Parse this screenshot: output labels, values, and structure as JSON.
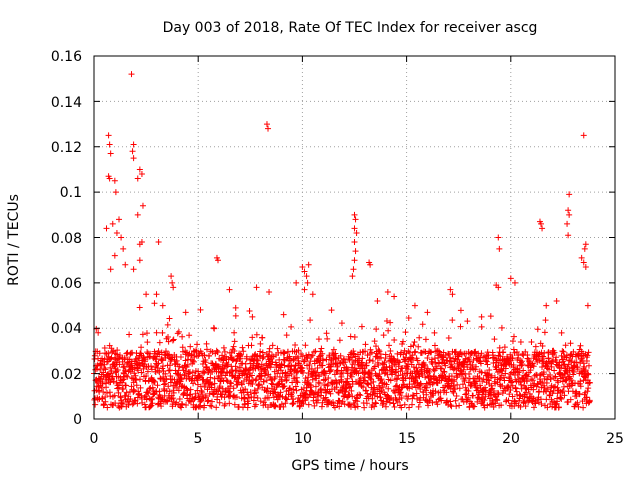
{
  "chart_data": {
    "type": "scatter",
    "title": "Day 003 of 2018, Rate Of TEC Index for receiver ascg",
    "xlabel": "GPS time / hours",
    "ylabel": "ROTI / TECUs",
    "xlim": [
      0,
      25
    ],
    "ylim": [
      0,
      0.16
    ],
    "x_ticks": [
      0,
      5,
      10,
      15,
      20,
      25
    ],
    "y_ticks": [
      0,
      0.02,
      0.04,
      0.06,
      0.08,
      0.1,
      0.12,
      0.14,
      0.16
    ],
    "x_tick_labels": [
      "0",
      "5",
      "10",
      "15",
      "20",
      "25"
    ],
    "y_tick_labels": [
      "0",
      "0.02",
      "0.04",
      "0.06",
      "0.08",
      "0.1",
      "0.12",
      "0.14",
      "0.16"
    ],
    "grid": true,
    "marker": "+",
    "marker_color": "#ff0000",
    "data_extent_hours": [
      0,
      23.8
    ],
    "baseline_band": [
      0.005,
      0.03
    ],
    "series": [
      {
        "name": "ROTI",
        "points": [
          [
            0.7,
            0.125
          ],
          [
            0.75,
            0.121
          ],
          [
            0.8,
            0.117
          ],
          [
            0.7,
            0.107
          ],
          [
            0.75,
            0.106
          ],
          [
            1.0,
            0.105
          ],
          [
            1.05,
            0.1
          ],
          [
            1.8,
            0.152
          ],
          [
            1.9,
            0.121
          ],
          [
            1.85,
            0.118
          ],
          [
            1.9,
            0.115
          ],
          [
            2.2,
            0.11
          ],
          [
            2.3,
            0.108
          ],
          [
            2.1,
            0.106
          ],
          [
            2.35,
            0.094
          ],
          [
            2.1,
            0.09
          ],
          [
            0.6,
            0.084
          ],
          [
            0.9,
            0.086
          ],
          [
            1.2,
            0.088
          ],
          [
            1.1,
            0.082
          ],
          [
            1.3,
            0.08
          ],
          [
            2.3,
            0.078
          ],
          [
            2.2,
            0.077
          ],
          [
            3.1,
            0.078
          ],
          [
            1.4,
            0.075
          ],
          [
            1.0,
            0.072
          ],
          [
            2.2,
            0.07
          ],
          [
            0.8,
            0.066
          ],
          [
            1.5,
            0.068
          ],
          [
            1.9,
            0.066
          ],
          [
            3.7,
            0.063
          ],
          [
            3.75,
            0.06
          ],
          [
            3.8,
            0.058
          ],
          [
            2.5,
            0.055
          ],
          [
            3.0,
            0.055
          ],
          [
            5.9,
            0.071
          ],
          [
            5.95,
            0.07
          ],
          [
            6.5,
            0.057
          ],
          [
            7.8,
            0.058
          ],
          [
            8.4,
            0.056
          ],
          [
            8.3,
            0.13
          ],
          [
            8.35,
            0.128
          ],
          [
            10.0,
            0.067
          ],
          [
            10.1,
            0.065
          ],
          [
            10.3,
            0.068
          ],
          [
            10.2,
            0.063
          ],
          [
            10.25,
            0.06
          ],
          [
            9.7,
            0.06
          ],
          [
            10.1,
            0.057
          ],
          [
            10.5,
            0.055
          ],
          [
            12.5,
            0.09
          ],
          [
            12.55,
            0.088
          ],
          [
            12.5,
            0.084
          ],
          [
            12.6,
            0.082
          ],
          [
            12.5,
            0.078
          ],
          [
            12.55,
            0.074
          ],
          [
            12.5,
            0.07
          ],
          [
            12.45,
            0.066
          ],
          [
            12.4,
            0.063
          ],
          [
            13.2,
            0.069
          ],
          [
            13.25,
            0.068
          ],
          [
            14.1,
            0.056
          ],
          [
            14.4,
            0.054
          ],
          [
            17.1,
            0.057
          ],
          [
            17.2,
            0.055
          ],
          [
            19.4,
            0.08
          ],
          [
            19.45,
            0.075
          ],
          [
            19.3,
            0.059
          ],
          [
            19.4,
            0.058
          ],
          [
            20.0,
            0.062
          ],
          [
            20.2,
            0.06
          ],
          [
            21.4,
            0.087
          ],
          [
            21.45,
            0.086
          ],
          [
            21.5,
            0.084
          ],
          [
            22.8,
            0.099
          ],
          [
            22.75,
            0.092
          ],
          [
            22.8,
            0.09
          ],
          [
            22.7,
            0.086
          ],
          [
            22.75,
            0.081
          ],
          [
            23.5,
            0.125
          ],
          [
            23.6,
            0.077
          ],
          [
            23.55,
            0.075
          ],
          [
            23.4,
            0.071
          ],
          [
            23.5,
            0.069
          ],
          [
            23.6,
            0.067
          ],
          [
            23.7,
            0.05
          ],
          [
            22.2,
            0.052
          ],
          [
            21.7,
            0.05
          ],
          [
            18.6,
            0.045
          ],
          [
            16.0,
            0.047
          ],
          [
            15.4,
            0.05
          ],
          [
            13.6,
            0.052
          ],
          [
            11.4,
            0.048
          ],
          [
            9.1,
            0.046
          ],
          [
            7.6,
            0.045
          ],
          [
            6.8,
            0.049
          ],
          [
            4.4,
            0.047
          ],
          [
            3.3,
            0.05
          ],
          [
            2.9,
            0.051
          ],
          [
            0.2,
            0.038
          ]
        ]
      }
    ]
  }
}
